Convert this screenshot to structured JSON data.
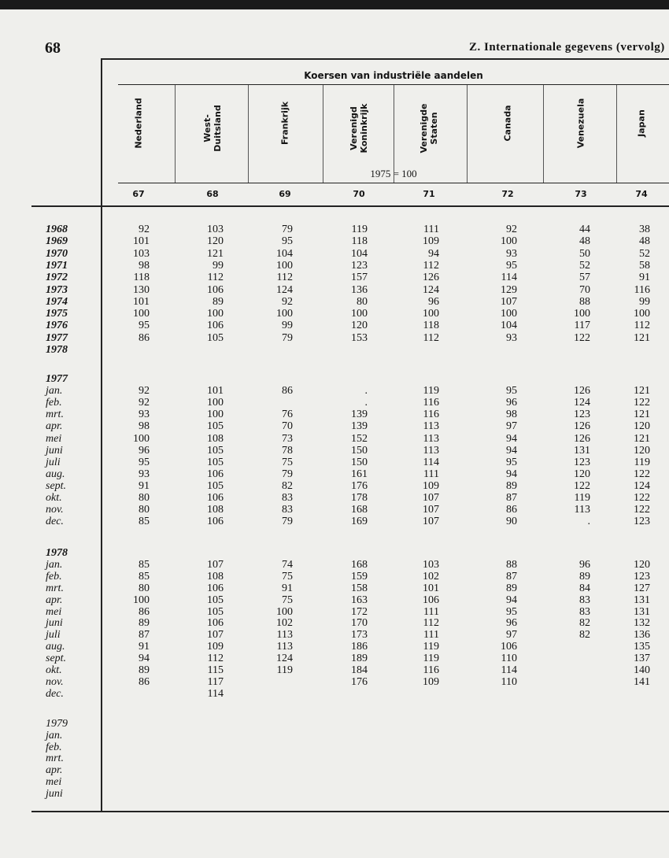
{
  "header": {
    "page_number": "68",
    "title": "Z. Internationale gegevens (vervolg)"
  },
  "table": {
    "title": "Koersen van industriële aandelen",
    "base": "1975 = 100",
    "columns": [
      {
        "name": "Nederland",
        "number": 67
      },
      {
        "name": "West-Duitsland",
        "number": 68
      },
      {
        "name": "Frankrijk",
        "number": 69
      },
      {
        "name": "Verenigd Koninkrijk",
        "number": 70
      },
      {
        "name": "Verenigde Staten",
        "number": 71
      },
      {
        "name": "Canada",
        "number": 72
      },
      {
        "name": "Venezuela",
        "number": 73
      },
      {
        "name": "Japan",
        "number": 74
      }
    ],
    "groups": [
      {
        "rows": [
          {
            "label": "1968",
            "values": [
              92,
              103,
              79,
              119,
              111,
              92,
              44,
              38
            ]
          },
          {
            "label": "1969",
            "values": [
              101,
              120,
              95,
              118,
              109,
              100,
              48,
              48
            ]
          },
          {
            "label": "1970",
            "values": [
              103,
              121,
              104,
              104,
              94,
              93,
              50,
              52
            ]
          },
          {
            "label": "1971",
            "values": [
              98,
              99,
              100,
              123,
              112,
              95,
              52,
              58
            ]
          },
          {
            "label": "1972",
            "values": [
              118,
              112,
              112,
              157,
              126,
              114,
              57,
              91
            ]
          },
          {
            "label": "1973",
            "values": [
              130,
              106,
              124,
              136,
              124,
              129,
              70,
              116
            ]
          },
          {
            "label": "1974",
            "values": [
              101,
              89,
              92,
              80,
              96,
              107,
              88,
              99
            ]
          },
          {
            "label": "1975",
            "values": [
              100,
              100,
              100,
              100,
              100,
              100,
              100,
              100
            ]
          },
          {
            "label": "1976",
            "values": [
              95,
              106,
              99,
              120,
              118,
              104,
              117,
              112
            ]
          },
          {
            "label": "1977",
            "values": [
              86,
              105,
              79,
              153,
              112,
              93,
              122,
              121
            ]
          },
          {
            "label": "1978",
            "values": [
              null,
              null,
              null,
              null,
              null,
              null,
              null,
              null
            ]
          }
        ]
      },
      {
        "heading": "1977",
        "rows": [
          {
            "label": "jan.",
            "values": [
              92,
              101,
              86,
              ".",
              119,
              95,
              126,
              121
            ]
          },
          {
            "label": "feb.",
            "values": [
              92,
              100,
              null,
              ".",
              116,
              96,
              124,
              122
            ]
          },
          {
            "label": "mrt.",
            "values": [
              93,
              100,
              76,
              139,
              116,
              98,
              123,
              121
            ]
          },
          {
            "label": "apr.",
            "values": [
              98,
              105,
              70,
              139,
              113,
              97,
              126,
              120
            ]
          },
          {
            "label": "mei",
            "values": [
              100,
              108,
              73,
              152,
              113,
              94,
              126,
              121
            ]
          },
          {
            "label": "juni",
            "values": [
              96,
              105,
              78,
              150,
              113,
              94,
              131,
              120
            ]
          },
          {
            "label": "juli",
            "values": [
              95,
              105,
              75,
              150,
              114,
              95,
              123,
              119
            ]
          },
          {
            "label": "aug.",
            "values": [
              93,
              106,
              79,
              161,
              111,
              94,
              120,
              122
            ]
          },
          {
            "label": "sept.",
            "values": [
              91,
              105,
              82,
              176,
              109,
              89,
              122,
              124
            ]
          },
          {
            "label": "okt.",
            "values": [
              80,
              106,
              83,
              178,
              107,
              87,
              119,
              122
            ]
          },
          {
            "label": "nov.",
            "values": [
              80,
              108,
              83,
              168,
              107,
              86,
              113,
              122
            ]
          },
          {
            "label": "dec.",
            "values": [
              85,
              106,
              79,
              169,
              107,
              90,
              ".",
              123
            ]
          }
        ]
      },
      {
        "heading": "1978",
        "rows": [
          {
            "label": "jan.",
            "values": [
              85,
              107,
              74,
              168,
              103,
              88,
              96,
              120
            ]
          },
          {
            "label": "feb.",
            "values": [
              85,
              108,
              75,
              159,
              102,
              87,
              89,
              123
            ]
          },
          {
            "label": "mrt.",
            "values": [
              80,
              106,
              91,
              158,
              101,
              89,
              84,
              127
            ]
          },
          {
            "label": "apr.",
            "values": [
              100,
              105,
              75,
              163,
              106,
              94,
              83,
              131
            ]
          },
          {
            "label": "mei",
            "values": [
              86,
              105,
              100,
              172,
              111,
              95,
              83,
              131
            ]
          },
          {
            "label": "juni",
            "values": [
              89,
              106,
              102,
              170,
              112,
              96,
              82,
              132
            ]
          },
          {
            "label": "juli",
            "values": [
              87,
              107,
              113,
              173,
              111,
              97,
              82,
              136
            ]
          },
          {
            "label": "aug.",
            "values": [
              91,
              109,
              113,
              186,
              119,
              106,
              null,
              135
            ]
          },
          {
            "label": "sept.",
            "values": [
              94,
              112,
              124,
              189,
              119,
              110,
              null,
              137
            ]
          },
          {
            "label": "okt.",
            "values": [
              89,
              115,
              119,
              184,
              116,
              114,
              null,
              140
            ]
          },
          {
            "label": "nov.",
            "values": [
              86,
              117,
              null,
              176,
              109,
              110,
              null,
              141
            ]
          },
          {
            "label": "dec.",
            "values": [
              null,
              114,
              null,
              null,
              null,
              null,
              null,
              null
            ]
          }
        ]
      },
      {
        "heading": "1979",
        "rows": [
          {
            "label": "jan.",
            "values": [
              null,
              null,
              null,
              null,
              null,
              null,
              null,
              null
            ]
          },
          {
            "label": "feb.",
            "values": [
              null,
              null,
              null,
              null,
              null,
              null,
              null,
              null
            ]
          },
          {
            "label": "mrt.",
            "values": [
              null,
              null,
              null,
              null,
              null,
              null,
              null,
              null
            ]
          },
          {
            "label": "apr.",
            "values": [
              null,
              null,
              null,
              null,
              null,
              null,
              null,
              null
            ]
          },
          {
            "label": "mei",
            "values": [
              null,
              null,
              null,
              null,
              null,
              null,
              null,
              null
            ]
          },
          {
            "label": "juni",
            "values": [
              null,
              null,
              null,
              null,
              null,
              null,
              null,
              null
            ]
          }
        ]
      }
    ]
  }
}
